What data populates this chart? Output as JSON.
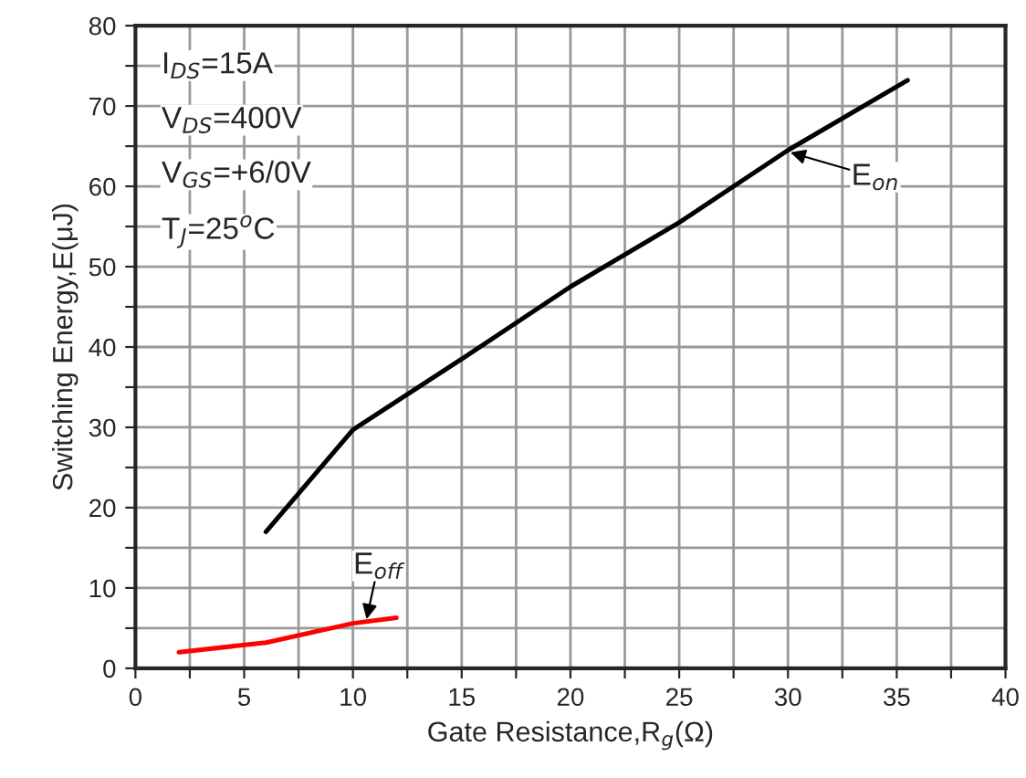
{
  "chart_data": {
    "type": "line",
    "xlabel": "Gate Resistance,R$_{g}$(Ω)",
    "ylabel": "Switching Energy,E(μJ)",
    "series": [
      {
        "color": "#000000",
        "x": [
          6,
          10,
          15,
          20,
          25,
          30,
          35.5
        ],
        "values": [
          17,
          29.7,
          38.5,
          47.5,
          55.5,
          64.5,
          73.2
        ]
      },
      {
        "color": "#ff0000",
        "x": [
          2,
          6,
          10,
          12
        ],
        "values": [
          2,
          3.2,
          5.6,
          6.3
        ]
      }
    ],
    "annotations": [
      "I$_{DS}$=15A",
      "V$_{DS}$=400V",
      "V$_{GS}$=+6/0V",
      "T$_{J}$=25$^{o}$C",
      {
        "text": "E$_{on}$",
        "x": 30,
        "y": 64.3
      },
      {
        "text": "E$_{off}$",
        "x": 10.6,
        "y": 5.8
      }
    ],
    "xlim": [
      0,
      40
    ],
    "ylim": [
      0,
      80
    ],
    "xticks": [
      0,
      {
        "value": 2.5,
        "label": null
      },
      5,
      {
        "value": 7.5,
        "label": null
      },
      10,
      {
        "value": 12.5,
        "label": null
      },
      15,
      {
        "value": 17.5,
        "label": null
      },
      20,
      {
        "value": 22.5,
        "label": null
      },
      25,
      {
        "value": 27.5,
        "label": null
      },
      30,
      {
        "value": 32.5,
        "label": null
      },
      35,
      {
        "value": 37.5,
        "label": null
      },
      40
    ],
    "yticks": [
      0,
      {
        "value": 5,
        "label": null
      },
      10,
      {
        "value": 15,
        "label": null
      },
      20,
      {
        "value": 25,
        "label": null
      },
      30,
      {
        "value": 35,
        "label": null
      },
      40,
      {
        "value": 45,
        "label": null
      },
      50,
      {
        "value": 55,
        "label": null
      },
      60,
      {
        "value": 65,
        "label": null
      },
      70,
      {
        "value": 75,
        "label": null
      },
      80
    ],
    "grid": true,
    "marker": "none",
    "line_style": "solid",
    "legend": false
  }
}
